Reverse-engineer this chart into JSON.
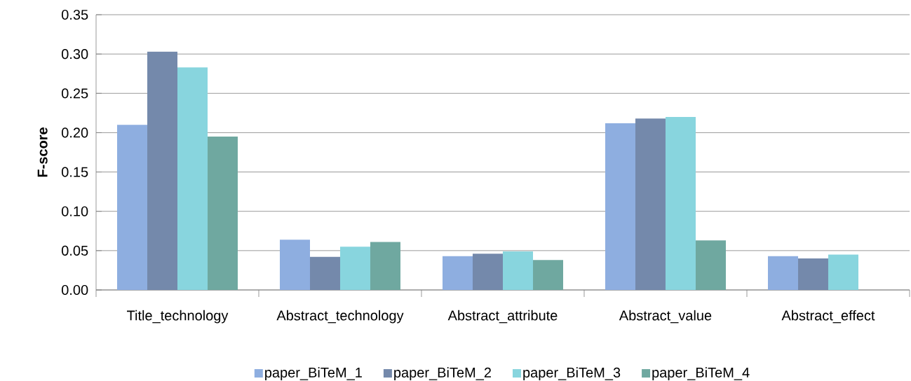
{
  "chart_data": {
    "type": "bar",
    "ylabel": "F-score",
    "categories": [
      "Title_technology",
      "Abstract_technology",
      "Abstract_attribute",
      "Abstract_value",
      "Abstract_effect"
    ],
    "series": [
      {
        "name": "paper_BiTeM_1",
        "color": "#8eaee0",
        "values": [
          0.21,
          0.064,
          0.043,
          0.212,
          0.043
        ]
      },
      {
        "name": "paper_BiTeM_2",
        "color": "#7489ab",
        "values": [
          0.303,
          0.042,
          0.046,
          0.218,
          0.04
        ]
      },
      {
        "name": "paper_BiTeM_3",
        "color": "#88d5de",
        "values": [
          0.283,
          0.055,
          0.049,
          0.22,
          0.045
        ]
      },
      {
        "name": "paper_BiTeM_4",
        "color": "#6fa8a0",
        "values": [
          0.195,
          0.061,
          0.038,
          0.063,
          null
        ]
      }
    ],
    "ylim": [
      0,
      0.35
    ],
    "yticks": [
      {
        "value": 0,
        "label": "0.00"
      },
      {
        "value": 0.05,
        "label": "0.05"
      },
      {
        "value": 0.1,
        "label": "0.10"
      },
      {
        "value": 0.15,
        "label": "0.15"
      },
      {
        "value": 0.2,
        "label": "0.20"
      },
      {
        "value": 0.25,
        "label": "0.25"
      },
      {
        "value": 0.3,
        "label": "0.30"
      },
      {
        "value": 0.35,
        "label": "0.35"
      }
    ],
    "grid": "y",
    "legend": "bottom"
  }
}
